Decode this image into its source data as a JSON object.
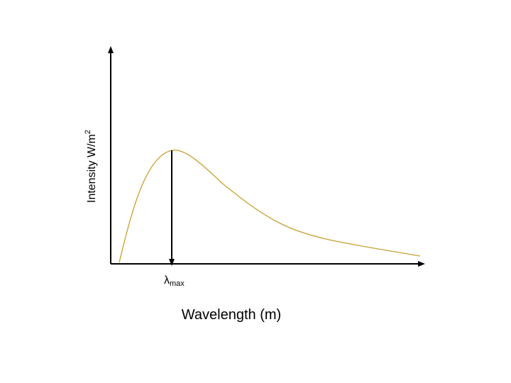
{
  "diagram": {
    "y_axis_label": "Intensity W/m",
    "y_axis_label_sup": "2",
    "x_axis_label": "Wavelength (m)",
    "peak_label_main": "λ",
    "peak_label_sub": "max",
    "curve_color": "#C8A031",
    "axis_color": "#000000"
  }
}
